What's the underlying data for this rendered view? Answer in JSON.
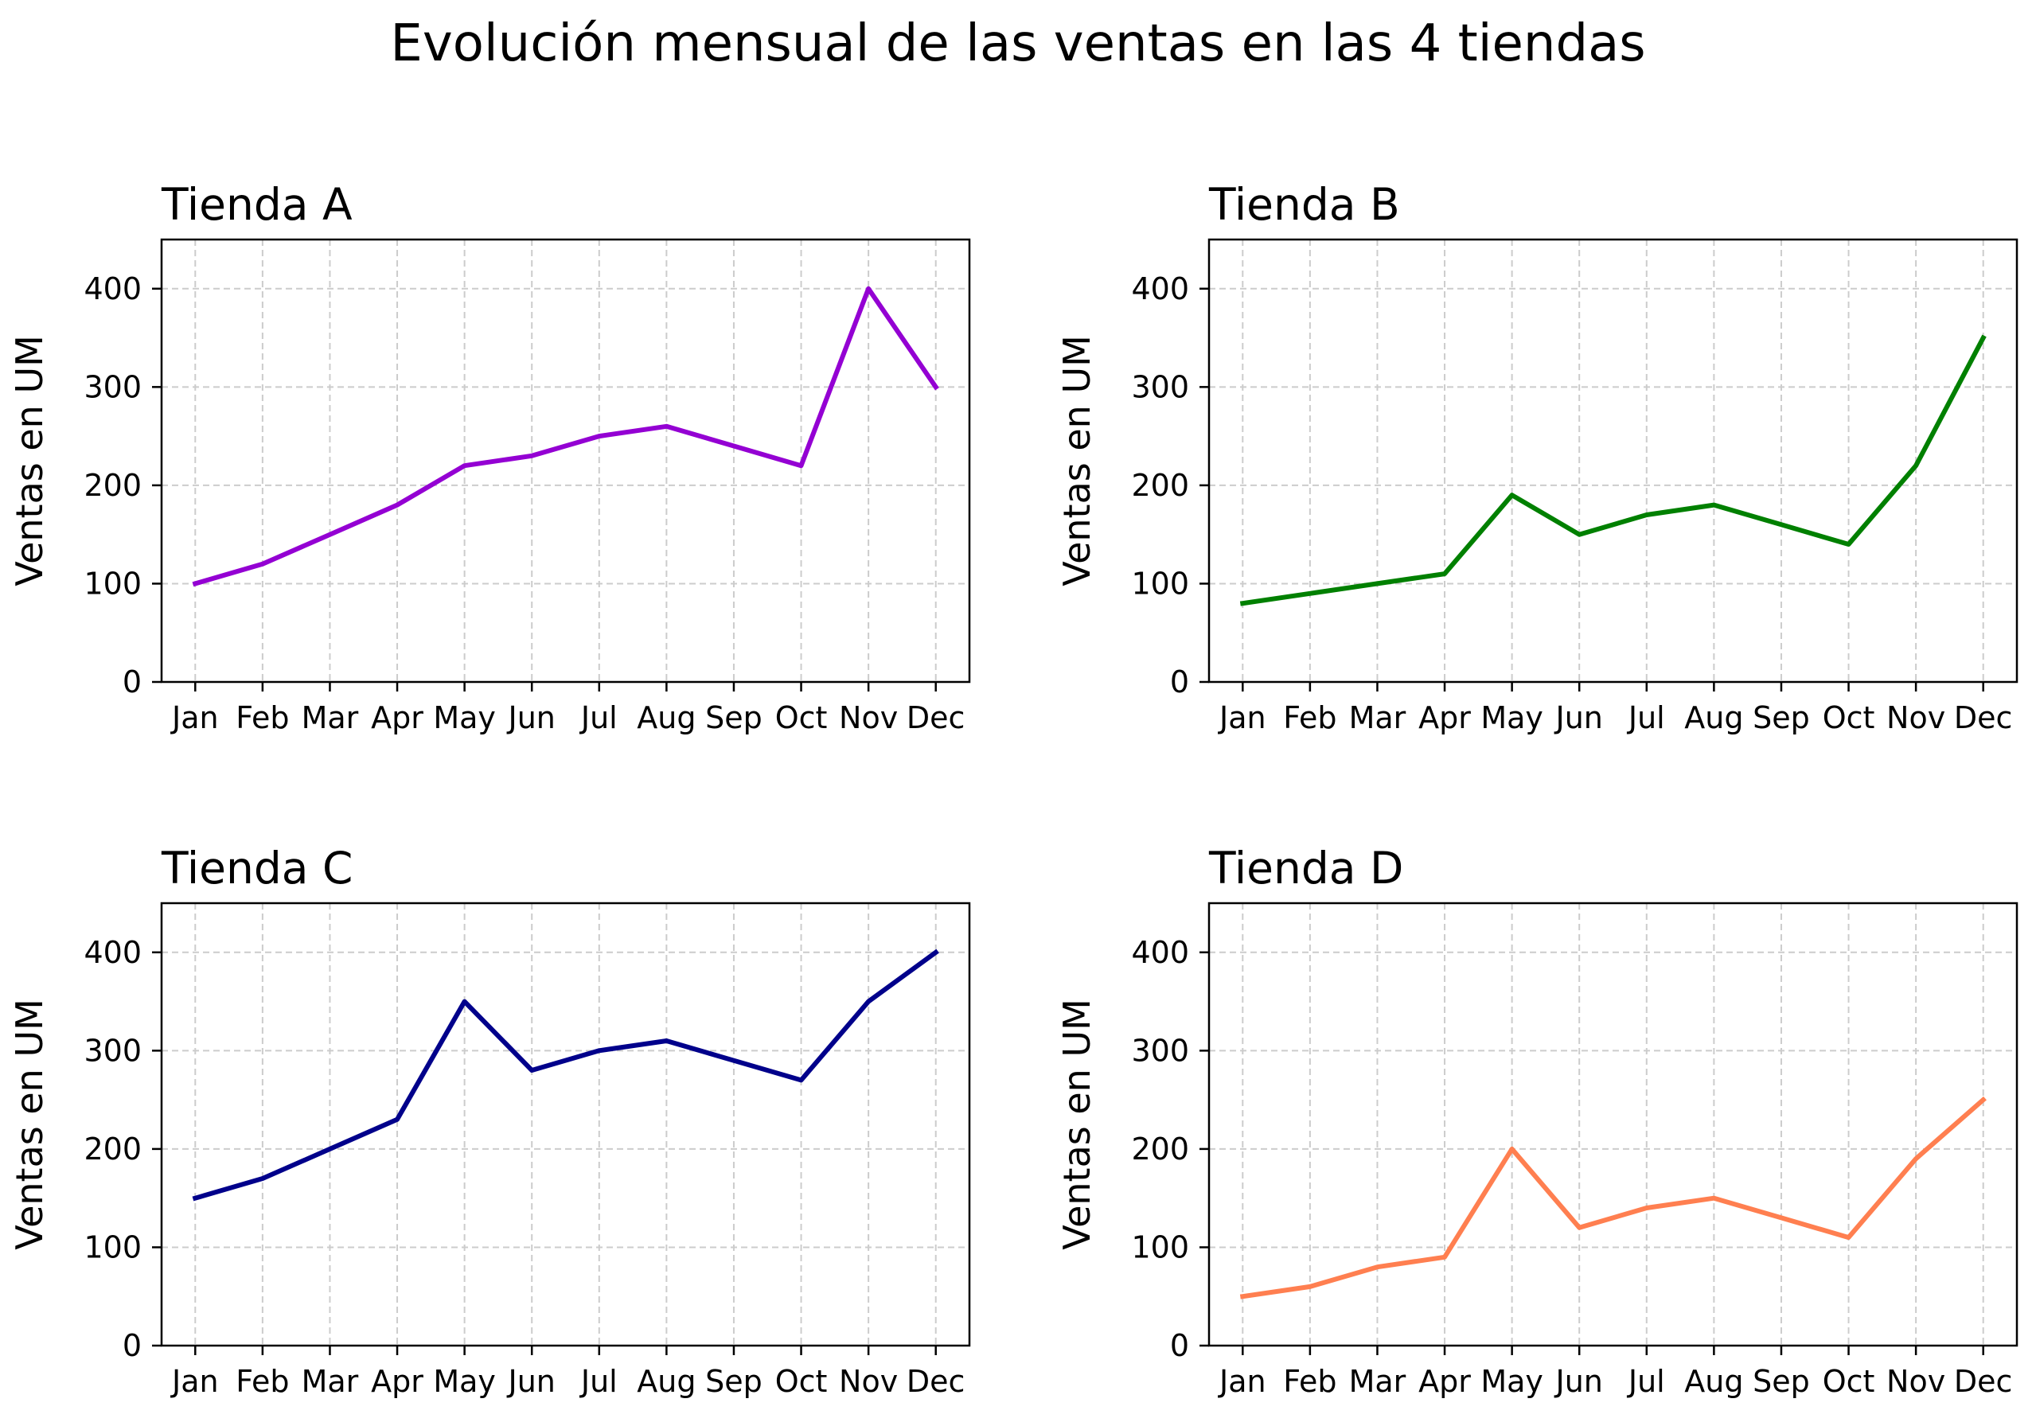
{
  "suptitle": "Evolución mensual de las ventas en las 4 tiendas",
  "chart_data": [
    {
      "type": "line",
      "title": "Tienda A",
      "xlabel": "",
      "ylabel": "Ventas en UM",
      "categories": [
        "Jan",
        "Feb",
        "Mar",
        "Apr",
        "May",
        "Jun",
        "Jul",
        "Aug",
        "Sep",
        "Oct",
        "Nov",
        "Dec"
      ],
      "values": [
        100,
        120,
        150,
        180,
        220,
        230,
        250,
        260,
        240,
        220,
        400,
        300
      ],
      "color": "#9400D3",
      "ylim": [
        0,
        450
      ],
      "yticks": [
        0,
        100,
        200,
        300,
        400
      ],
      "grid": true
    },
    {
      "type": "line",
      "title": "Tienda B",
      "xlabel": "",
      "ylabel": "Ventas en UM",
      "categories": [
        "Jan",
        "Feb",
        "Mar",
        "Apr",
        "May",
        "Jun",
        "Jul",
        "Aug",
        "Sep",
        "Oct",
        "Nov",
        "Dec"
      ],
      "values": [
        80,
        90,
        100,
        110,
        190,
        150,
        170,
        180,
        160,
        140,
        220,
        350
      ],
      "color": "#008000",
      "ylim": [
        0,
        450
      ],
      "yticks": [
        0,
        100,
        200,
        300,
        400
      ],
      "grid": true
    },
    {
      "type": "line",
      "title": "Tienda C",
      "xlabel": "",
      "ylabel": "Ventas en UM",
      "categories": [
        "Jan",
        "Feb",
        "Mar",
        "Apr",
        "May",
        "Jun",
        "Jul",
        "Aug",
        "Sep",
        "Oct",
        "Nov",
        "Dec"
      ],
      "values": [
        150,
        170,
        200,
        230,
        350,
        280,
        300,
        310,
        290,
        270,
        350,
        400
      ],
      "color": "#00008B",
      "ylim": [
        0,
        450
      ],
      "yticks": [
        0,
        100,
        200,
        300,
        400
      ],
      "grid": true
    },
    {
      "type": "line",
      "title": "Tienda D",
      "xlabel": "",
      "ylabel": "Ventas en UM",
      "categories": [
        "Jan",
        "Feb",
        "Mar",
        "Apr",
        "May",
        "Jun",
        "Jul",
        "Aug",
        "Sep",
        "Oct",
        "Nov",
        "Dec"
      ],
      "values": [
        50,
        60,
        80,
        90,
        200,
        120,
        140,
        150,
        130,
        110,
        190,
        250
      ],
      "color": "#FF7F50",
      "ylim": [
        0,
        450
      ],
      "yticks": [
        0,
        100,
        200,
        300,
        400
      ],
      "grid": true
    }
  ]
}
